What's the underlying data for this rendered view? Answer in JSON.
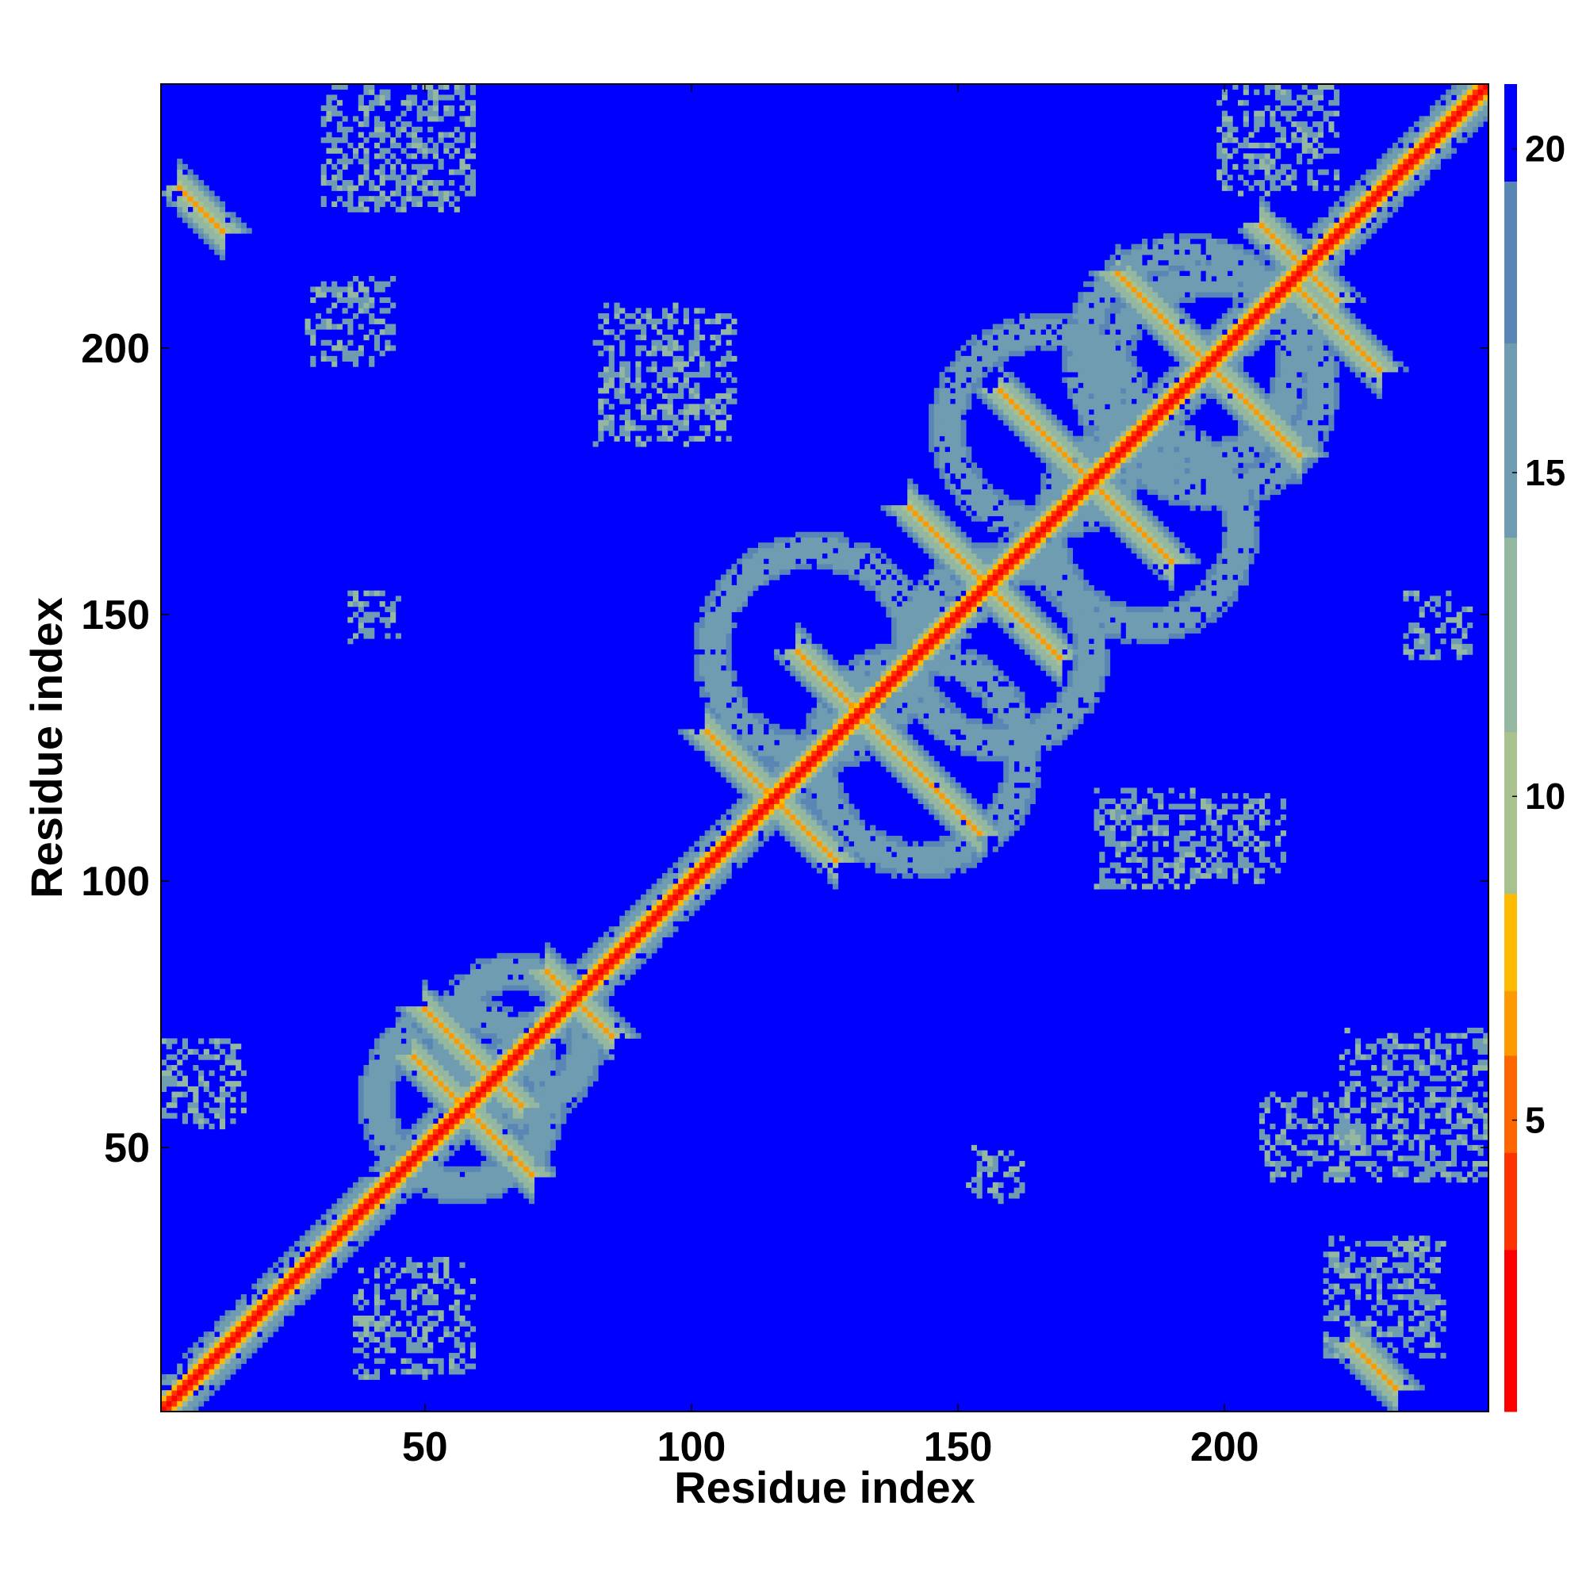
{
  "chart_data": {
    "type": "heatmap",
    "title": "",
    "xlabel": "Residue index",
    "ylabel": "Residue index",
    "xlim": [
      1,
      249
    ],
    "ylim": [
      1,
      249
    ],
    "xticks": [
      50,
      100,
      150,
      200
    ],
    "yticks": [
      50,
      100,
      150,
      200
    ],
    "colorbar": {
      "ticks": [
        5,
        10,
        15,
        20
      ],
      "range": [
        0.5,
        21
      ],
      "colors": [
        "#ff0000",
        "#ff3300",
        "#ff6600",
        "#ff9900",
        "#ffbb00",
        "#a9c18e",
        "#93b7a0",
        "#6f9cb0",
        "#5a86b5",
        "#0000ff"
      ],
      "boundaries": [
        0.5,
        3,
        4.5,
        6,
        7,
        8.5,
        11,
        14,
        17,
        19.5,
        21
      ]
    },
    "background_value": 21,
    "features": {
      "diagonal": {
        "from": 1,
        "to": 249,
        "value": 2
      },
      "antiparallel_strands": [
        {
          "center": [
            59,
            56
          ],
          "half_length": 11,
          "value": 6
        },
        {
          "center": [
            59,
            67
          ],
          "half_length": 9,
          "value": 6
        },
        {
          "center": [
            79,
            77
          ],
          "half_length": 6,
          "value": 6
        },
        {
          "center": [
            137,
            126
          ],
          "half_length": 17,
          "value": 6
        },
        {
          "center": [
            115,
            116
          ],
          "half_length": 12,
          "value": 6
        },
        {
          "center": [
            155,
            156
          ],
          "half_length": 14,
          "value": 6
        },
        {
          "center": [
            174,
            176
          ],
          "half_length": 16,
          "value": 6
        },
        {
          "center": [
            197,
            197
          ],
          "half_length": 17,
          "value": 6
        },
        {
          "center": [
            214,
            216
          ],
          "half_length": 7,
          "value": 6
        },
        {
          "center": [
            221,
            204
          ],
          "half_length": 8,
          "value": 6
        },
        {
          "center": [
            8,
            226
          ],
          "half_length": 4,
          "value": 6
        },
        {
          "center": [
            228,
            9
          ],
          "half_length": 4,
          "value": 6
        }
      ],
      "ring_contacts": [
        {
          "center": [
            57,
            59
          ],
          "radius": 16,
          "value": 14
        },
        {
          "center": [
            67,
            70
          ],
          "radius": 13,
          "value": 14
        },
        {
          "center": [
            123,
            143
          ],
          "radius": 19,
          "value": 14
        },
        {
          "center": [
            143,
            123
          ],
          "radius": 19,
          "value": 14
        },
        {
          "center": [
            158,
            143
          ],
          "radius": 17,
          "value": 14
        },
        {
          "center": [
            193,
            198
          ],
          "radius": 20,
          "value": 14
        },
        {
          "center": [
            198,
            193
          ],
          "radius": 20,
          "value": 14
        },
        {
          "center": [
            166,
            185
          ],
          "radius": 18,
          "value": 14
        },
        {
          "center": [
            185,
            166
          ],
          "radius": 18,
          "value": 14
        }
      ],
      "scattered_patches": [
        {
          "center": [
            45,
            240
          ],
          "size": 18,
          "value": 13
        },
        {
          "center": [
            36,
            205
          ],
          "size": 10,
          "value": 13
        },
        {
          "center": [
            95,
            195
          ],
          "size": 16,
          "value": 13
        },
        {
          "center": [
            210,
            240
          ],
          "size": 14,
          "value": 13
        },
        {
          "center": [
            236,
            58
          ],
          "size": 18,
          "value": 13
        },
        {
          "center": [
            8,
            62
          ],
          "size": 10,
          "value": 13
        },
        {
          "center": [
            230,
            22
          ],
          "size": 14,
          "value": 13
        },
        {
          "center": [
            48,
            18
          ],
          "size": 14,
          "value": 13
        },
        {
          "center": [
            215,
            52
          ],
          "size": 10,
          "value": 13
        },
        {
          "center": [
            185,
            108
          ],
          "size": 12,
          "value": 13
        },
        {
          "center": [
            203,
            108
          ],
          "size": 10,
          "value": 13
        },
        {
          "center": [
            40,
            150
          ],
          "size": 6,
          "value": 13
        },
        {
          "center": [
            240,
            148
          ],
          "size": 8,
          "value": 13
        },
        {
          "center": [
            157,
            45
          ],
          "size": 6,
          "value": 13
        }
      ]
    }
  }
}
